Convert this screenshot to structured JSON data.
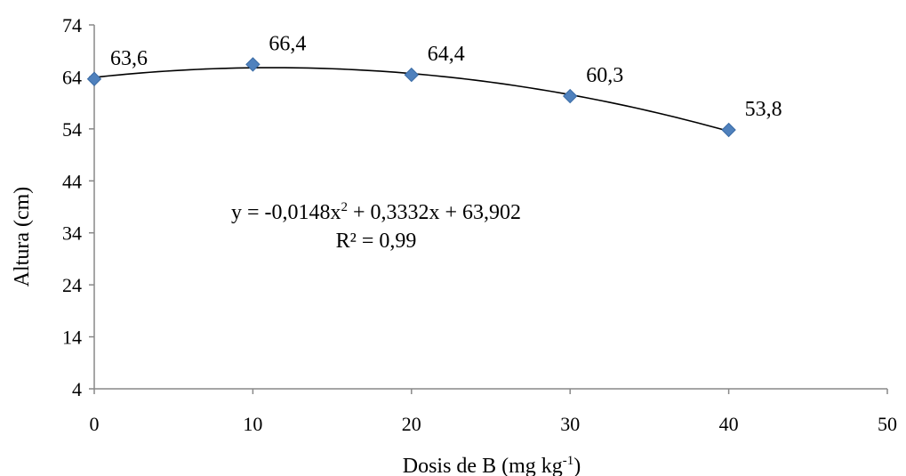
{
  "chart_data": {
    "type": "scatter",
    "xlabel": "Dosis de B (mg kg",
    "xlabel_superscript": "-1",
    "xlabel_suffix": ")",
    "ylabel": "Altura (cm)",
    "xlim": [
      0,
      50
    ],
    "ylim": [
      4,
      74
    ],
    "x_ticks": [
      0,
      10,
      20,
      30,
      40,
      50
    ],
    "x_tick_labels": [
      "0",
      "10",
      "20",
      "30",
      "40",
      "50"
    ],
    "y_ticks": [
      4,
      14,
      24,
      34,
      44,
      54,
      64,
      74
    ],
    "y_tick_labels": [
      "4",
      "14",
      "24",
      "34",
      "44",
      "54",
      "64",
      "74"
    ],
    "grid": false,
    "series": [
      {
        "x": [
          0,
          10,
          20,
          30,
          40
        ],
        "values": [
          63.6,
          66.4,
          64.4,
          60.3,
          53.8
        ],
        "labels": [
          "63,6",
          "66,4",
          "64,4",
          "60,3",
          "53,8"
        ],
        "marker": "diamond",
        "color": "#4F81BD"
      }
    ],
    "trendline": {
      "type": "polynomial",
      "coefficients": [
        -0.0148,
        0.3332,
        63.902
      ],
      "x_range": [
        0,
        40
      ],
      "color": "#000000",
      "equation_text": "y = -0,0148x",
      "equation_superscript": "2",
      "equation_suffix": " + 0,3332x + 63,902",
      "r2_text": "R² = 0,99"
    }
  }
}
